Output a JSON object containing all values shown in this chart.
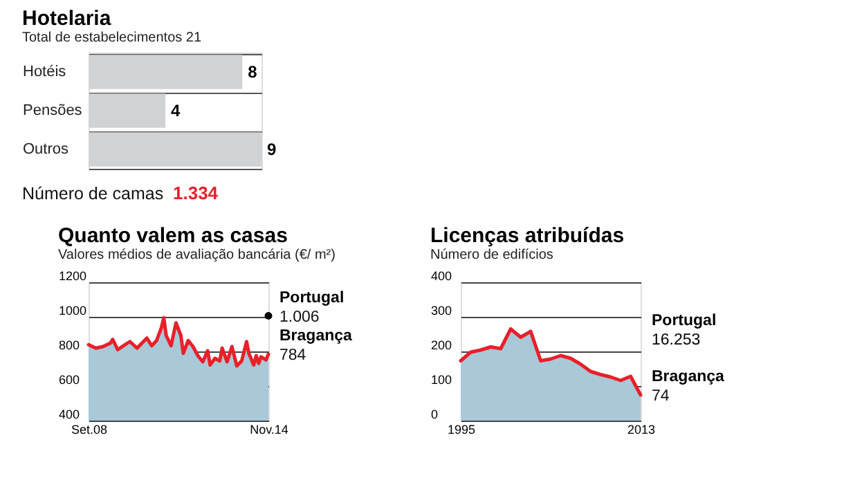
{
  "chart_data": [
    {
      "type": "bar",
      "title": "Hotelaria",
      "subtitle": "Total de estabelecimentos  21",
      "orientation": "horizontal",
      "categories": [
        "Hotéis",
        "Pensões",
        "Outros"
      ],
      "values": [
        8,
        4,
        9
      ],
      "color": "#d1d2d4",
      "data_labels": true,
      "grid": "y",
      "tick_labels": "y",
      "annotations": [
        "Número de camas",
        "1.334"
      ]
    },
    {
      "type": "line",
      "title": "Quanto valem as casas",
      "subtitle": "Valores médios de avaliação bancária (€/ m²)",
      "x": [
        "2008-09",
        "2008-12",
        "2009-03",
        "2009-06",
        "2009-07",
        "2009-09",
        "2009-12",
        "2010-02",
        "2010-05",
        "2010-07",
        "2010-09",
        "2010-11",
        "2011-01",
        "2011-03",
        "2011-04",
        "2011-05",
        "2011-07",
        "2011-09",
        "2011-11",
        "2011-12",
        "2012-02",
        "2012-04",
        "2012-06",
        "2012-08",
        "2012-10",
        "2012-11",
        "2013-01",
        "2013-03",
        "2013-04",
        "2013-06",
        "2013-08",
        "2013-10",
        "2013-12",
        "2014-02",
        "2014-03",
        "2014-05",
        "2014-06",
        "2014-07",
        "2014-08",
        "2014-10",
        "2014-11"
      ],
      "xlim": [
        "2008-09",
        "2014-11"
      ],
      "xticks": [
        {
          "value": "2008-09",
          "label": "Set.08"
        },
        {
          "value": "2014-11",
          "label": "Nov.14"
        }
      ],
      "ylim": [
        400,
        1200
      ],
      "yticks": [
        400,
        600,
        800,
        1000,
        1200
      ],
      "grid": "y",
      "series": [
        {
          "type": "area",
          "color": "#a9c8d8",
          "values": [
            839,
            819,
            828,
            848,
            869,
            810,
            839,
            857,
            819,
            848,
            877,
            833,
            863,
            936,
            995,
            892,
            833,
            965,
            892,
            789,
            863,
            828,
            775,
            740,
            804,
            722,
            760,
            745,
            819,
            740,
            828,
            716,
            745,
            857,
            789,
            722,
            775,
            731,
            769,
            751,
            784
          ]
        },
        {
          "name": "Bragança",
          "type": "line",
          "color": "#e8202a",
          "values": [
            839,
            819,
            828,
            848,
            869,
            810,
            839,
            857,
            819,
            848,
            877,
            833,
            863,
            936,
            995,
            892,
            833,
            965,
            892,
            789,
            863,
            828,
            775,
            740,
            804,
            722,
            760,
            745,
            819,
            740,
            828,
            716,
            745,
            857,
            789,
            722,
            775,
            731,
            769,
            751,
            784
          ]
        },
        {
          "name": "Portugal",
          "type": "scatter",
          "color": "#000000",
          "x": [
            "2014-11"
          ],
          "values": [
            1006
          ]
        }
      ],
      "annotations": [
        {
          "text": "1.006",
          "x": "2014-11",
          "y": 1006
        },
        {
          "text": "784",
          "x": "2014-11",
          "y": 784
        }
      ]
    },
    {
      "type": "line",
      "title": "Licenças atribuídas",
      "subtitle": "Número de edifícios",
      "x": [
        1995,
        1996,
        1997,
        1998,
        1999,
        2000,
        2001,
        2002,
        2003,
        2004,
        2005,
        2006,
        2007,
        2008,
        2009,
        2010,
        2011,
        2012,
        2013
      ],
      "xlim": [
        1995,
        2013
      ],
      "xticks": [
        1995,
        2013
      ],
      "ylim": [
        0,
        400
      ],
      "yticks": [
        0,
        100,
        200,
        300,
        400
      ],
      "grid": "y",
      "series": [
        {
          "type": "area",
          "color": "#a9c8d8",
          "values": [
            173,
            198,
            204,
            213,
            208,
            265,
            241,
            258,
            173,
            178,
            188,
            180,
            163,
            142,
            133,
            126,
            116,
            128,
            74
          ]
        },
        {
          "name": "Bragança",
          "type": "line",
          "color": "#e8202a",
          "values": [
            173,
            198,
            204,
            213,
            208,
            265,
            241,
            258,
            173,
            178,
            188,
            180,
            163,
            142,
            133,
            126,
            116,
            128,
            74
          ]
        }
      ],
      "annotations": [
        "Portugal",
        "16.253",
        {
          "text": "74",
          "x": 2013,
          "y": 74
        }
      ]
    }
  ]
}
